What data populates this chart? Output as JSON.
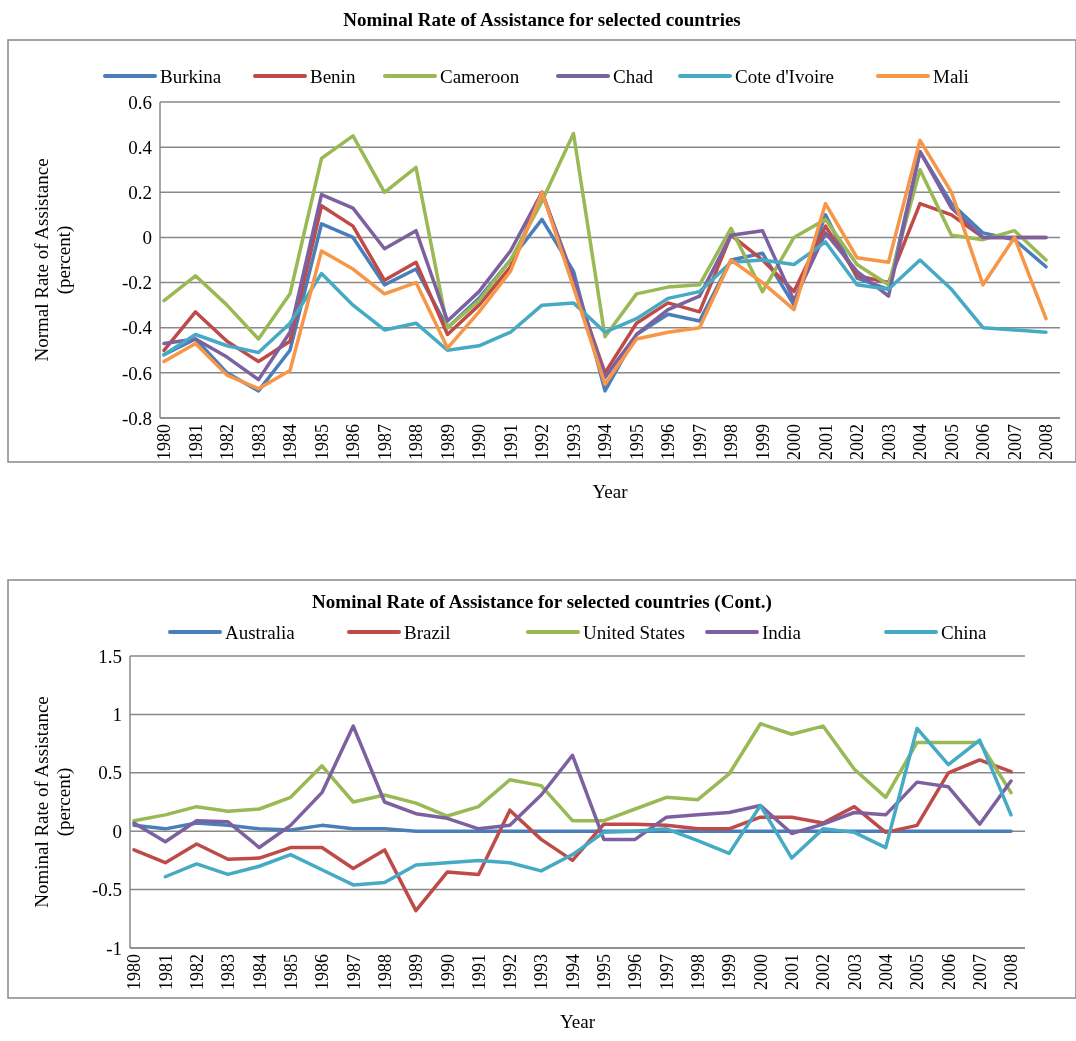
{
  "chart_data": [
    {
      "type": "line",
      "title": "Nominal Rate of Assistance for selected countries",
      "xlabel": "Year",
      "ylabel": "Normal Rate of Assistance (percent)",
      "categories": [
        "1980",
        "1981",
        "1982",
        "1983",
        "1984",
        "1985",
        "1986",
        "1987",
        "1988",
        "1989",
        "1990",
        "1991",
        "1992",
        "1993",
        "1994",
        "1995",
        "1996",
        "1997",
        "1998",
        "1999",
        "2000",
        "2001",
        "2002",
        "2003",
        "2004",
        "2005",
        "2006",
        "2007",
        "2008"
      ],
      "series": [
        {
          "name": "Burkina",
          "color": "#4a7ebb",
          "values": [
            -0.52,
            -0.45,
            -0.6,
            -0.68,
            -0.5,
            0.06,
            0.0,
            -0.21,
            -0.14,
            -0.4,
            -0.27,
            -0.1,
            0.08,
            -0.15,
            -0.68,
            -0.43,
            -0.34,
            -0.37,
            -0.1,
            -0.07,
            -0.3,
            0.1,
            -0.18,
            -0.23,
            0.38,
            0.15,
            0.02,
            -0.01,
            -0.13
          ]
        },
        {
          "name": "Benin",
          "color": "#be4b48",
          "values": [
            -0.5,
            -0.33,
            -0.46,
            -0.55,
            -0.46,
            0.14,
            0.05,
            -0.19,
            -0.11,
            -0.43,
            -0.3,
            -0.13,
            0.2,
            -0.2,
            -0.6,
            -0.38,
            -0.29,
            -0.33,
            0.01,
            -0.1,
            -0.24,
            0.05,
            -0.17,
            -0.2,
            0.15,
            0.1,
            0.0,
            0.0,
            0.0
          ]
        },
        {
          "name": "Cameroon",
          "color": "#98b954",
          "values": [
            -0.28,
            -0.17,
            -0.3,
            -0.45,
            -0.25,
            0.35,
            0.45,
            0.2,
            0.31,
            -0.4,
            -0.28,
            -0.1,
            0.16,
            0.46,
            -0.44,
            -0.25,
            -0.22,
            -0.21,
            0.04,
            -0.24,
            0.0,
            0.08,
            -0.12,
            -0.21,
            0.3,
            0.01,
            -0.01,
            0.03,
            -0.1
          ]
        },
        {
          "name": "Chad",
          "color": "#7d60a0",
          "values": [
            -0.47,
            -0.45,
            -0.53,
            -0.63,
            -0.42,
            0.19,
            0.13,
            -0.05,
            0.03,
            -0.37,
            -0.24,
            -0.06,
            0.2,
            -0.18,
            -0.62,
            -0.43,
            -0.32,
            -0.26,
            0.01,
            0.03,
            -0.28,
            0.02,
            -0.15,
            -0.26,
            0.38,
            0.13,
            0.0,
            0.0,
            0.0
          ]
        },
        {
          "name": "Cote d'Ivoire",
          "color": "#46aac5",
          "values": [
            -0.52,
            -0.43,
            -0.48,
            -0.51,
            -0.38,
            -0.16,
            -0.3,
            -0.41,
            -0.38,
            -0.5,
            -0.48,
            -0.42,
            -0.3,
            -0.29,
            -0.42,
            -0.36,
            -0.27,
            -0.24,
            -0.11,
            -0.1,
            -0.12,
            -0.02,
            -0.21,
            -0.23,
            -0.1,
            -0.23,
            -0.4,
            -0.41,
            -0.42
          ]
        },
        {
          "name": "Mali",
          "color": "#f79646",
          "values": [
            -0.55,
            -0.47,
            -0.61,
            -0.67,
            -0.59,
            -0.06,
            -0.14,
            -0.25,
            -0.2,
            -0.49,
            -0.33,
            -0.15,
            0.2,
            -0.22,
            -0.65,
            -0.45,
            -0.42,
            -0.4,
            -0.1,
            -0.2,
            -0.32,
            0.15,
            -0.09,
            -0.11,
            0.43,
            0.2,
            -0.21,
            0.0,
            -0.36
          ]
        }
      ],
      "ylim": [
        -0.8,
        0.6
      ],
      "yticks": [
        {
          "value": -0.8,
          "label": "-0.8"
        },
        {
          "value": -0.6,
          "label": "-0.6"
        },
        {
          "value": -0.4,
          "label": "-0.4"
        },
        {
          "value": -0.2,
          "label": "-0.2"
        },
        0,
        {
          "value": 0.2,
          "label": "0.2"
        },
        {
          "value": 0.4,
          "label": "0.4"
        },
        {
          "value": 0.6,
          "label": "0.6"
        }
      ],
      "grid": "y",
      "legend": "top",
      "line_style": "solid"
    },
    {
      "type": "line",
      "title": "Nominal Rate of Assistance for selected countries (Cont.)",
      "xlabel": "Year",
      "ylabel": "Nominal Rate of Assistance (percent)",
      "categories": [
        "1980",
        "1981",
        "1982",
        "1983",
        "1984",
        "1985",
        "1986",
        "1987",
        "1988",
        "1989",
        "1990",
        "1991",
        "1992",
        "1993",
        "1994",
        "1995",
        "1996",
        "1997",
        "1998",
        "1999",
        "2000",
        "2001",
        "2002",
        "2003",
        "2004",
        "2005",
        "2006",
        "2007",
        "2008"
      ],
      "series": [
        {
          "name": "Australia",
          "color": "#4a7ebb",
          "values": [
            0.05,
            0.02,
            0.07,
            0.05,
            0.02,
            0.01,
            0.05,
            0.02,
            0.02,
            0,
            0,
            0,
            0,
            0,
            0,
            0,
            0,
            0,
            0,
            0,
            0,
            0,
            0,
            0,
            0,
            0,
            0,
            0,
            0
          ]
        },
        {
          "name": "Brazil",
          "color": "#be4b48",
          "values": [
            -0.16,
            -0.27,
            -0.11,
            -0.24,
            -0.23,
            -0.14,
            -0.14,
            -0.32,
            -0.16,
            -0.68,
            -0.35,
            -0.37,
            0.18,
            -0.07,
            -0.25,
            0.06,
            0.06,
            0.05,
            0.02,
            0.02,
            0.12,
            0.12,
            0.07,
            0.21,
            -0.01,
            0.05,
            0.5,
            0.61,
            0.51
          ]
        },
        {
          "name": "United States",
          "color": "#98b954",
          "values": [
            0.09,
            0.14,
            0.21,
            0.17,
            0.19,
            0.29,
            0.56,
            0.25,
            0.31,
            0.24,
            0.13,
            0.21,
            0.44,
            0.39,
            0.09,
            0.09,
            0.19,
            0.29,
            0.27,
            0.49,
            0.92,
            0.83,
            0.9,
            0.53,
            0.29,
            0.76,
            0.76,
            0.76,
            0.33
          ]
        },
        {
          "name": "India",
          "color": "#7d60a0",
          "values": [
            0.07,
            -0.09,
            0.09,
            0.08,
            -0.14,
            0.05,
            0.33,
            0.9,
            0.25,
            0.15,
            0.11,
            0.02,
            0.05,
            0.31,
            0.65,
            -0.07,
            -0.07,
            0.12,
            0.14,
            0.16,
            0.22,
            -0.02,
            0.06,
            0.16,
            0.14,
            0.42,
            0.38,
            0.06,
            0.43
          ]
        },
        {
          "name": "China",
          "color": "#46aac5",
          "values": [
            null,
            -0.39,
            -0.28,
            -0.37,
            -0.3,
            -0.2,
            -0.33,
            -0.46,
            -0.44,
            -0.29,
            -0.27,
            -0.25,
            -0.27,
            -0.34,
            -0.2,
            -0.01,
            0,
            0.02,
            -0.08,
            -0.19,
            0.22,
            -0.23,
            0.02,
            -0.01,
            -0.14,
            0.88,
            0.57,
            0.78,
            0.14
          ]
        }
      ],
      "ylim": [
        -1,
        1.5
      ],
      "yticks": [
        -1,
        {
          "value": -0.5,
          "label": "-0.5"
        },
        0,
        {
          "value": 0.5,
          "label": "0.5"
        },
        1,
        {
          "value": 1.5,
          "label": "1.5"
        }
      ],
      "grid": "y",
      "legend": "top",
      "line_style": "solid"
    }
  ]
}
